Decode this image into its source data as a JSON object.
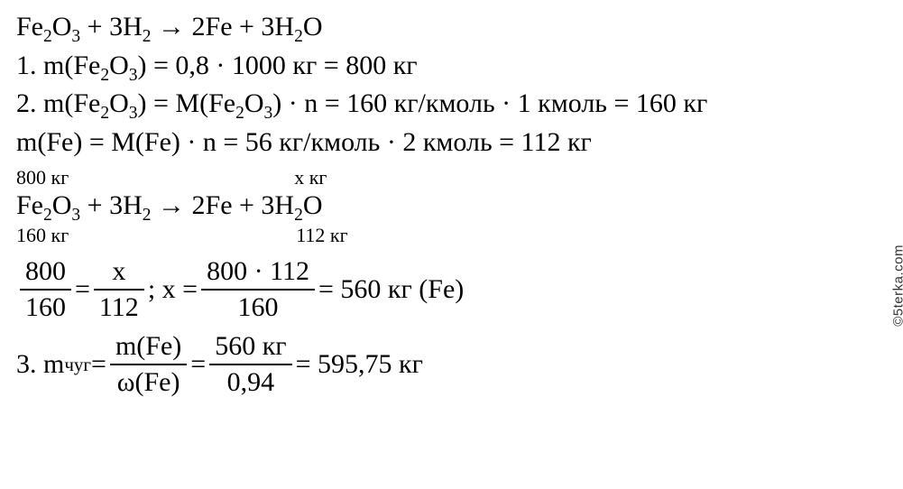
{
  "watermark": "©5terka.com",
  "eq1": {
    "lhs1": "Fe",
    "sub1": "2",
    "lhs2": "O",
    "sub2": "3",
    "plus1": " + 3H",
    "subH": "2",
    "arrow": " → 2Fe + 3H",
    "subH2": "2",
    "tail": "O"
  },
  "step1": {
    "label": "1. m(Fe",
    "sub1": "2",
    "mid1": "O",
    "sub2": "3",
    "rest": ") = 0,8 · 1000 кг = 800 кг"
  },
  "step2a": {
    "label": "2. m(Fe",
    "sub1": "2",
    "mid1": "O",
    "sub2": "3",
    "mid2": ") = M(Fe",
    "sub3": "2",
    "mid3": "O",
    "sub4": "3",
    "rest": ") · n = 160 кг/кмоль · 1 кмоль = 160 кг"
  },
  "step2b": "m(Fe) = M(Fe) · n = 56 кг/кмоль · 2 кмоль = 112 кг",
  "annotTop": {
    "left": "800 кг",
    "right": "x кг"
  },
  "eq2": {
    "lhs1": "Fe",
    "sub1": "2",
    "lhs2": "O",
    "sub2": "3",
    "plus1": " + 3H",
    "subH": "2",
    "arrow": " → 2Fe + 3H",
    "subH2": "2",
    "tail": "O"
  },
  "annotBot": {
    "left": "160 кг",
    "right": "112 кг"
  },
  "prop": {
    "f1n": "800",
    "f1d": "160",
    "eq1": " = ",
    "f2n": "x",
    "f2d": "112",
    "sep": " ; x = ",
    "f3n": "800 · 112",
    "f3d": "160",
    "tail": " = 560 кг (Fe)"
  },
  "step3": {
    "lead": "3. m",
    "subscript": "чуг",
    "eq": " = ",
    "f1n": "m(Fe)",
    "f1d": "ω(Fe)",
    "mid": " = ",
    "f2n": "560 кг",
    "f2d": "0,94",
    "tail": " = 595,75 кг"
  }
}
